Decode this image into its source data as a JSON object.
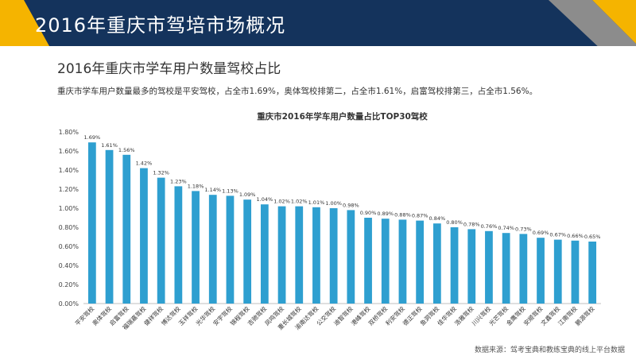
{
  "header": {
    "title": "2016年重庆市驾培市场概况"
  },
  "section": {
    "title": "2016年重庆市学车用户数量驾校占比",
    "description": "重庆市学车用户数量最多的驾校是平安驾校，占全市1.69%，奥体驾校排第二，占全市1.61%，启富驾校排第三，占全市1.56%。"
  },
  "source": "数据来源：驾考宝典和教练宝典的线上平台数据",
  "chart_data": {
    "type": "bar",
    "title": "重庆市2016年学车用户数量占比TOP30驾校",
    "categories": [
      "平安驾校",
      "奥体驾校",
      "启富驾校",
      "福瑞嘉驾校",
      "健祥驾校",
      "博达驾校",
      "玉祥驾校",
      "光华驾校",
      "安宇驾校",
      "锦程驾校",
      "吉驰驾校",
      "凤鸣驾校",
      "重长城驾校",
      "渝南达驾校",
      "公交驾校",
      "迪智驾校",
      "港峰驾校",
      "双桥驾校",
      "利安驾校",
      "德正驾校",
      "鱼洞驾校",
      "佳华驾校",
      "浩雅驾校",
      "川兴驾校",
      "光芒驾校",
      "金鹰驾校",
      "安顺驾校",
      "文鑫驾校",
      "江南驾校",
      "鹏源驾校"
    ],
    "values": [
      1.69,
      1.61,
      1.56,
      1.42,
      1.32,
      1.23,
      1.18,
      1.14,
      1.13,
      1.09,
      1.04,
      1.02,
      1.02,
      1.01,
      1.0,
      0.98,
      0.9,
      0.89,
      0.88,
      0.87,
      0.84,
      0.8,
      0.78,
      0.76,
      0.74,
      0.73,
      0.69,
      0.67,
      0.66,
      0.65
    ],
    "value_labels": [
      "1.69%",
      "1.61%",
      "1.56%",
      "1.42%",
      "1.32%",
      "1.23%",
      "1.18%",
      "1.14%",
      "1.13%",
      "1.09%",
      "1.04%",
      "1.02%",
      "1.02%",
      "1.01%",
      "1.00%",
      "0.98%",
      "0.90%",
      "0.89%",
      "0.88%",
      "0.87%",
      "0.84%",
      "0.80%",
      "0.78%",
      "0.76%",
      "0.74%",
      "0.73%",
      "0.69%",
      "0.67%",
      "0.66%",
      "0.65%"
    ],
    "yticks": [
      "0.00%",
      "0.20%",
      "0.40%",
      "0.60%",
      "0.80%",
      "1.00%",
      "1.20%",
      "1.40%",
      "1.60%",
      "1.80%"
    ],
    "ylim": [
      0,
      1.8
    ],
    "grid": false,
    "bar_color": "#2e9fd0"
  },
  "colors": {
    "header_bg": "#14335c",
    "accent_yellow": "#f5b400",
    "accent_gray": "#8c8c8c"
  }
}
